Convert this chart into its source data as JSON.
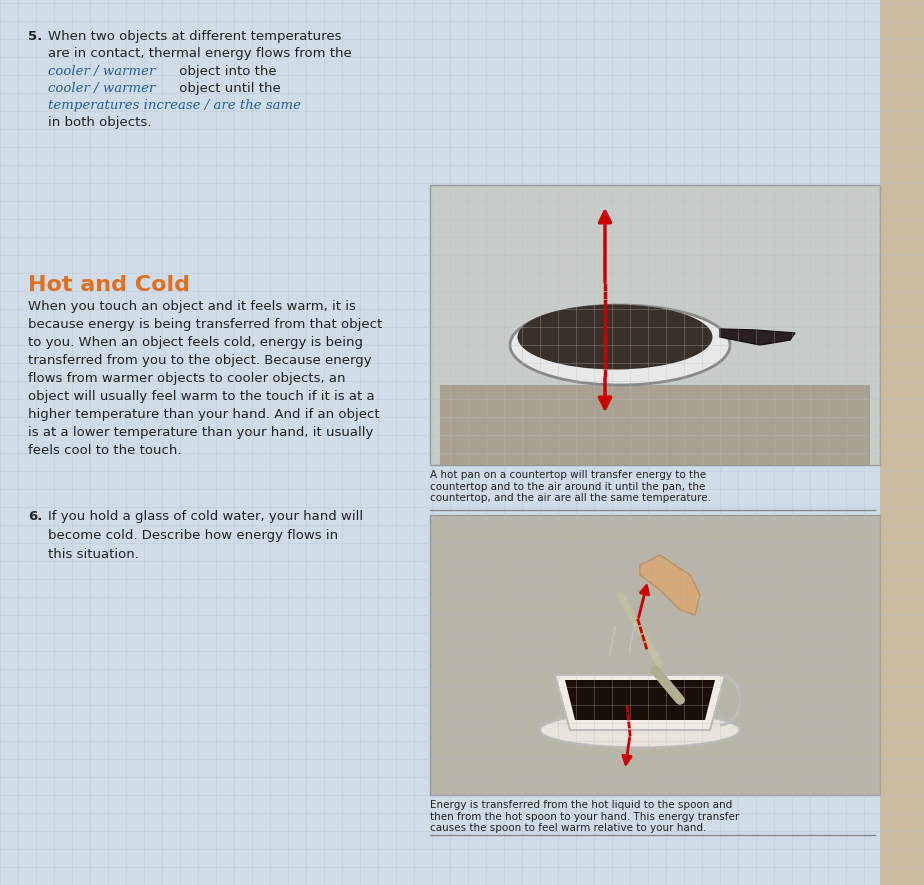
{
  "bg_color": "#c8d4e0",
  "page_bg": "#d0dce8",
  "grid_color": "#b0bfcc",
  "title_hot_cold": "Hot and Cold",
  "title_color": "#e07020",
  "q5_number": "5.",
  "q5_text_line1": "When two objects at different temperatures",
  "q5_text_line2": "are in contact, thermal energy flows from the",
  "q5_answer_line1": "cooler / warmer",
  "q5_answer_post1": " object into the",
  "q5_answer_line2": "cooler / warmer",
  "q5_answer_post2": " object until the",
  "q5_answer_line3": "temperatures increase / are the same",
  "q5_answer_post3": "in both objects.",
  "hc_para": "When you touch an object and it feels warm, it is\nbecause energy is being transferred from that object\nto you. When an object feels cold, energy is being\ntransferred from you to the object. Because energy\nflows from warmer objects to cooler objects, an\nobject will usually feel warm to the touch if it is at a\nhigher temperature than your hand. And if an object\nis at a lower temperature than your hand, it usually\nfeels cool to the touch.",
  "q6_number": "6.",
  "q6_text": "If you hold a glass of cold water, your hand will\nbecome cold. Describe how energy flows in\nthis situation.",
  "caption1": "A hot pan on a countertop will transfer energy to the\ncountertop and to the air around it until the pan, the\ncountertop, and the air are all the same temperature.",
  "caption2": "Energy is transferred from the hot liquid to the spoon and\nthen from the hot spoon to your hand. This energy transfer\ncauses the spoon to feel warm relative to your hand.",
  "arrow_color": "#cc0000",
  "text_color": "#222222",
  "handwriting_color": "#2060a0"
}
